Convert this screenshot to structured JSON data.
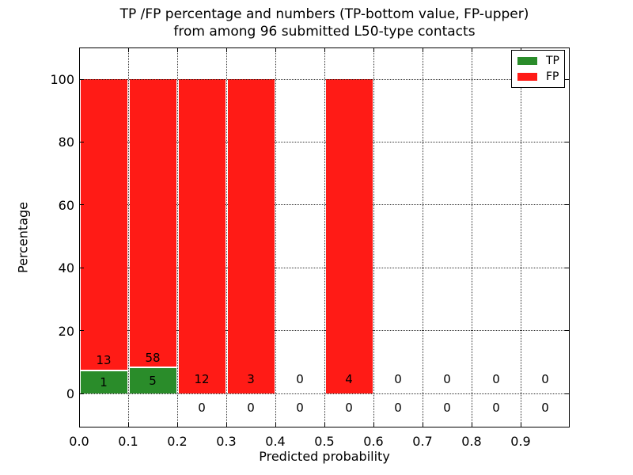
{
  "title": {
    "line1": "TP /FP percentage and numbers (TP-bottom value, FP-upper)",
    "line2": "from among 96 submitted L50-type contacts"
  },
  "axes": {
    "xlabel": "Predicted probability",
    "ylabel": "Percentage",
    "x_ticks": [
      "0.0",
      "0.1",
      "0.2",
      "0.3",
      "0.4",
      "0.5",
      "0.6",
      "0.7",
      "0.8",
      "0.9"
    ],
    "y_ticks": [
      "0",
      "20",
      "40",
      "60",
      "80",
      "100"
    ]
  },
  "legend": {
    "items": [
      {
        "label": "TP",
        "color": "#2a8c2a"
      },
      {
        "label": "FP",
        "color": "#ff1b16"
      }
    ]
  },
  "chart_data": {
    "type": "bar",
    "stacked": true,
    "title": "TP /FP percentage and numbers (TP-bottom value, FP-upper) from among 96 submitted L50-type contacts",
    "xlabel": "Predicted probability",
    "ylabel": "Percentage",
    "xlim": [
      0.0,
      1.0
    ],
    "ylim": [
      -10.8,
      110
    ],
    "grid": "dotted",
    "legend_position": "upper right",
    "bin_edges": [
      0.0,
      0.1,
      0.2,
      0.3,
      0.4,
      0.5,
      0.6,
      0.7,
      0.8,
      0.9,
      1.0
    ],
    "series": [
      {
        "name": "TP",
        "color": "#2a8c2a",
        "counts": [
          1,
          5,
          0,
          0,
          0,
          0,
          0,
          0,
          0,
          0
        ]
      },
      {
        "name": "FP",
        "color": "#ff1b16",
        "counts": [
          13,
          58,
          12,
          3,
          0,
          4,
          0,
          0,
          0,
          0
        ]
      }
    ],
    "total_submitted": 96,
    "normalization": "each non-empty bin drawn as a 100% stacked bar (TP share bottom, FP share top); labels show raw counts: TP bottom value, FP upper value; bins with TP=0 show the TP count below the 0% line"
  }
}
